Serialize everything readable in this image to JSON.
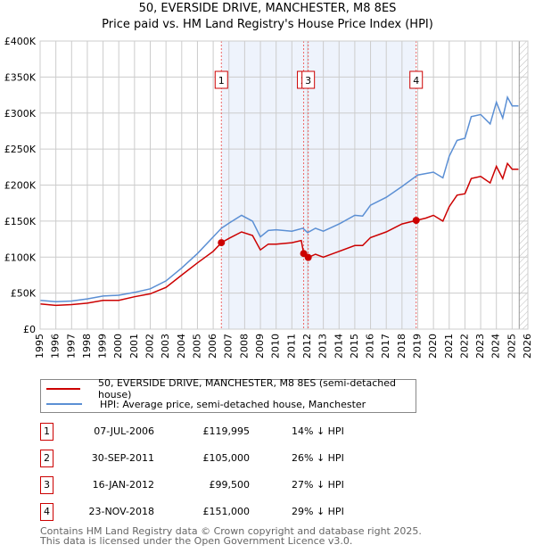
{
  "chart_data": {
    "type": "line",
    "title": "50, EVERSIDE DRIVE, MANCHESTER, M8 8ES",
    "subtitle": "Price paid vs. HM Land Registry's House Price Index (HPI)",
    "xlim": [
      1995,
      2026
    ],
    "ylim": [
      0,
      400000
    ],
    "x_ticks": [
      "1995",
      "1996",
      "1997",
      "1998",
      "1999",
      "2000",
      "2001",
      "2002",
      "2003",
      "2004",
      "2005",
      "2006",
      "2007",
      "2008",
      "2009",
      "2010",
      "2011",
      "2012",
      "2013",
      "2014",
      "2015",
      "2016",
      "2017",
      "2018",
      "2019",
      "2020",
      "2021",
      "2022",
      "2023",
      "2024",
      "2025",
      "2026"
    ],
    "y_ticks": [
      {
        "v": 0,
        "label": "£0"
      },
      {
        "v": 50000,
        "label": "£50K"
      },
      {
        "v": 100000,
        "label": "£100K"
      },
      {
        "v": 150000,
        "label": "£150K"
      },
      {
        "v": 200000,
        "label": "£200K"
      },
      {
        "v": 250000,
        "label": "£250K"
      },
      {
        "v": 300000,
        "label": "£300K"
      },
      {
        "v": 350000,
        "label": "£350K"
      },
      {
        "v": 400000,
        "label": "£400K"
      }
    ],
    "grid": true,
    "shaded_range": [
      2006.52,
      2018.9
    ],
    "future_hatch_from": 2025.45,
    "series": [
      {
        "name": "50, EVERSIDE DRIVE, MANCHESTER, M8 8ES (semi-detached house)",
        "color": "#cc0000",
        "x": [
          1995,
          1996,
          1997,
          1998,
          1999,
          2000,
          2001,
          2002,
          2003,
          2004,
          2005,
          2006,
          2006.52,
          2007,
          2007.8,
          2008.5,
          2009,
          2009.5,
          2010,
          2011,
          2011.6,
          2011.75,
          2012.04,
          2012.5,
          2013,
          2014,
          2015,
          2015.5,
          2016,
          2017,
          2018,
          2018.9,
          2019.5,
          2020,
          2020.6,
          2021,
          2021.5,
          2022,
          2022.4,
          2023,
          2023.6,
          2024,
          2024.4,
          2024.7,
          2025,
          2025.4
        ],
        "y": [
          35000,
          33000,
          34000,
          36000,
          40000,
          40000,
          45000,
          49000,
          58000,
          75000,
          92000,
          108000,
          119995,
          126000,
          135000,
          130000,
          110000,
          118000,
          118000,
          120000,
          123000,
          105000,
          99500,
          104000,
          100000,
          108000,
          116000,
          116000,
          127000,
          135000,
          146000,
          151000,
          154000,
          158000,
          150000,
          170000,
          186000,
          188000,
          209000,
          212000,
          203000,
          226000,
          209000,
          230000,
          222000,
          222000
        ]
      },
      {
        "name": "HPI: Average price, semi-detached house, Manchester",
        "color": "#5b8fd4",
        "x": [
          1995,
          1996,
          1997,
          1998,
          1999,
          2000,
          2001,
          2002,
          2003,
          2004,
          2005,
          2006,
          2006.52,
          2007,
          2007.8,
          2008.5,
          2009,
          2009.5,
          2010,
          2011,
          2011.7,
          2012,
          2012.5,
          2013,
          2014,
          2015,
          2015.5,
          2016,
          2017,
          2018,
          2019,
          2020,
          2020.6,
          2021,
          2021.5,
          2022,
          2022.4,
          2023,
          2023.6,
          2024,
          2024.4,
          2024.7,
          2025,
          2025.4
        ],
        "y": [
          40000,
          38000,
          39000,
          42000,
          46000,
          47000,
          51000,
          56000,
          67000,
          85000,
          105000,
          128000,
          140000,
          147000,
          158000,
          150000,
          128000,
          137000,
          138000,
          136000,
          140000,
          134000,
          140000,
          136000,
          146000,
          158000,
          157000,
          172000,
          183000,
          198000,
          214000,
          218000,
          210000,
          240000,
          262000,
          265000,
          295000,
          298000,
          285000,
          315000,
          293000,
          322000,
          310000,
          310000
        ]
      }
    ],
    "sales": [
      {
        "id": "1",
        "x": 2006.52,
        "price": 119995,
        "date": "07-JUL-2006",
        "price_label": "£119,995",
        "hpi_delta": "14% ↓ HPI"
      },
      {
        "id": "2",
        "x": 2011.75,
        "price": 105000,
        "date": "30-SEP-2011",
        "price_label": "£105,000",
        "hpi_delta": "26% ↓ HPI"
      },
      {
        "id": "3",
        "x": 2012.04,
        "price": 99500,
        "date": "16-JAN-2012",
        "price_label": "£99,500",
        "hpi_delta": "27% ↓ HPI"
      },
      {
        "id": "4",
        "x": 2018.9,
        "price": 151000,
        "date": "23-NOV-2018",
        "price_label": "£151,000",
        "hpi_delta": "29% ↓ HPI"
      }
    ]
  },
  "footer": {
    "line1": "Contains HM Land Registry data © Crown copyright and database right 2025.",
    "line2": "This data is licensed under the Open Government Licence v3.0."
  }
}
